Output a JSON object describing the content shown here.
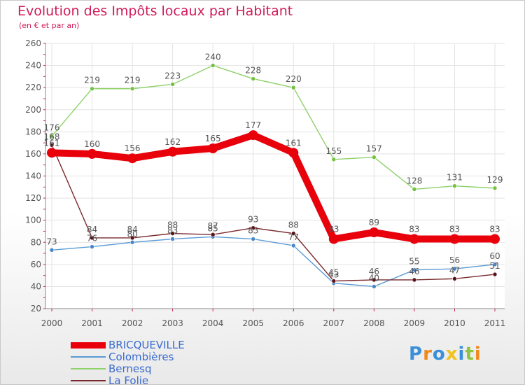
{
  "chart_data": {
    "type": "line",
    "title": "Evolution des Impôts locaux par Habitant",
    "subtitle": "(en € et par an)",
    "xlabel": "",
    "ylabel": "",
    "x": [
      "2000",
      "2001",
      "2002",
      "2003",
      "2004",
      "2005",
      "2006",
      "2007",
      "2008",
      "2009",
      "2010",
      "2011"
    ],
    "ylim": [
      20,
      260
    ],
    "yticks": [
      "20",
      "40",
      "60",
      "80",
      "100",
      "120",
      "140",
      "160",
      "180",
      "200",
      "220",
      "240",
      "260"
    ],
    "grid": true,
    "legend_position": "bottom-left",
    "series": [
      {
        "name": "BRICQUEVILLE",
        "color": "#e8000b",
        "values": [
          161,
          160,
          156,
          162,
          165,
          177,
          161,
          83,
          89,
          83,
          83,
          83
        ]
      },
      {
        "name": "Colombières",
        "color": "#5b9bd5",
        "values": [
          73,
          76,
          80,
          83,
          85,
          83,
          77,
          43,
          40,
          55,
          56,
          60
        ]
      },
      {
        "name": "Bernesq",
        "color": "#8fd16a",
        "values": [
          176,
          219,
          219,
          223,
          240,
          228,
          220,
          155,
          157,
          128,
          131,
          129
        ]
      },
      {
        "name": "La Folie",
        "color": "#7a2a2e",
        "values": [
          168,
          84,
          84,
          88,
          87,
          93,
          88,
          45,
          46,
          46,
          47,
          51
        ]
      }
    ]
  },
  "logo": {
    "text": "Proxiti",
    "letters": [
      "P",
      "r",
      "o",
      "x",
      "i",
      "t",
      "i"
    ]
  }
}
